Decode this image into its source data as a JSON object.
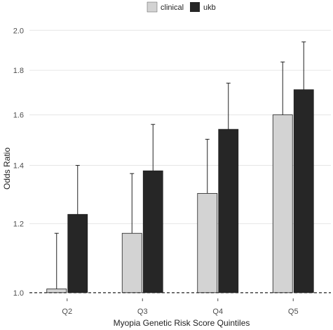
{
  "chart_data": {
    "type": "bar",
    "title": "",
    "xlabel": "Myopia Genetic Risk Score Quintiles",
    "ylabel": "Odds Ratio",
    "categories": [
      "Q2",
      "Q3",
      "Q4",
      "Q5"
    ],
    "series": [
      {
        "name": "clinical",
        "color": "#d3d3d3",
        "values": [
          1.01,
          1.17,
          1.3,
          1.6
        ],
        "upper": [
          1.17,
          1.37,
          1.5,
          1.84
        ]
      },
      {
        "name": "ukb",
        "color": "#262626",
        "values": [
          1.23,
          1.38,
          1.54,
          1.71
        ],
        "upper": [
          1.4,
          1.56,
          1.74,
          1.94
        ]
      }
    ],
    "y_scale": "log",
    "ylim": [
      0.985,
      2.05
    ],
    "y_ticks": [
      1.0,
      1.2,
      1.4,
      1.6,
      1.8,
      2.0
    ],
    "y_tick_labels": [
      "1.0",
      "1.2",
      "1.4",
      "1.6",
      "1.8",
      "2.0"
    ],
    "reference_line": 1.0,
    "grid": true,
    "legend_position": "top"
  }
}
